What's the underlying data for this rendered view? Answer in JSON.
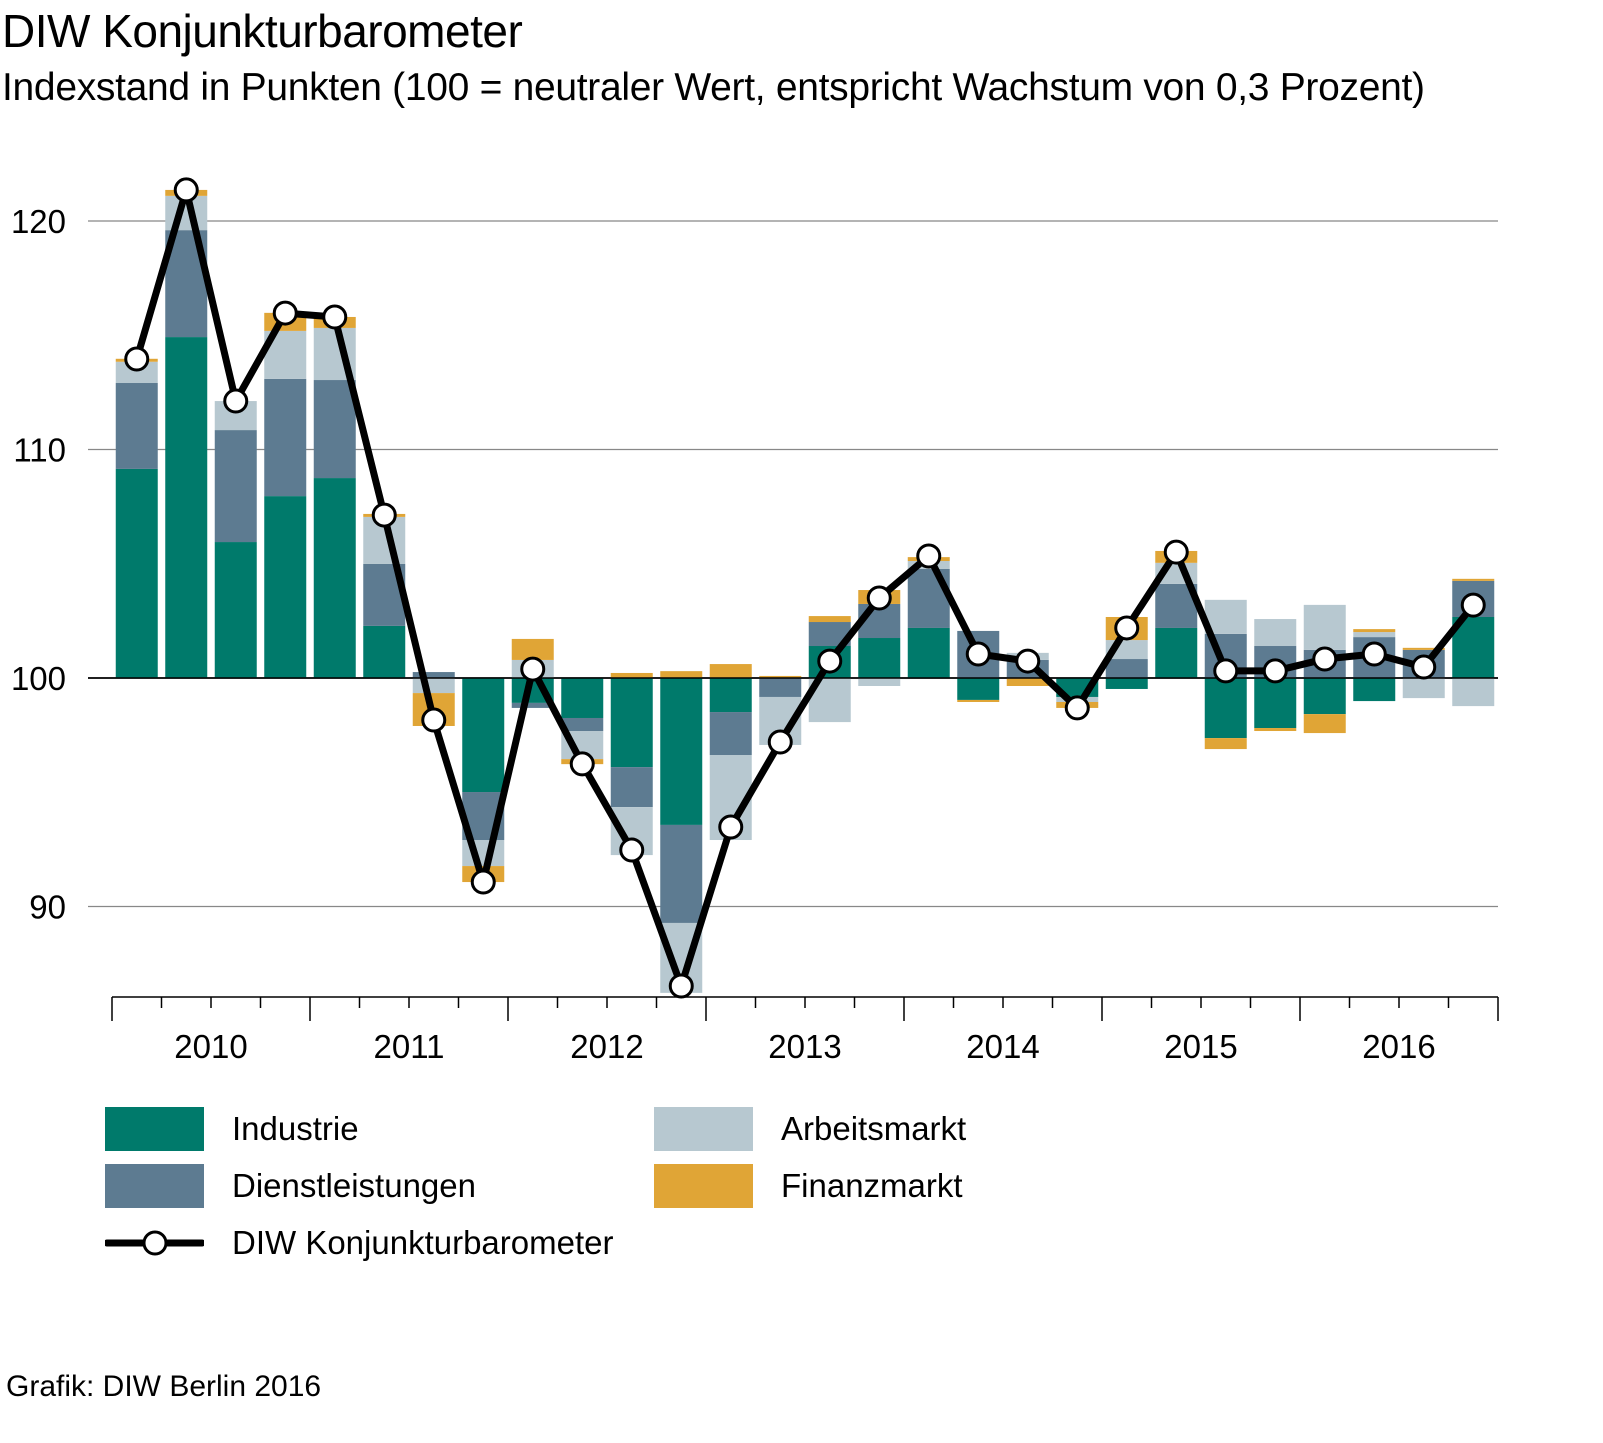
{
  "title": "DIW Konjunkturbarometer",
  "subtitle": "Indexstand in Punkten (100 = neutraler Wert, entspricht Wachstum von 0,3 Prozent)",
  "source": "Grafik: DIW Berlin 2016",
  "colors": {
    "Industrie": "#007a6b",
    "Dienstleistungen": "#5d7b91",
    "Arbeitsmarkt": "#b7c8d0",
    "Finanzmarkt": "#e0a536",
    "line": "#000000"
  },
  "chart_data": {
    "type": "bar",
    "title": "DIW Konjunkturbarometer",
    "ylabel": "Indexstand in Punkten",
    "ylim": [
      86,
      122
    ],
    "baseline": 100,
    "yticks": [
      90,
      100,
      110,
      120
    ],
    "ytick_labels": [
      "90",
      "100",
      "110",
      "120"
    ],
    "grid": true,
    "years": [
      "2010",
      "2011",
      "2012",
      "2013",
      "2014",
      "2015",
      "2016"
    ],
    "categories": [
      "2010Q1",
      "2010Q2",
      "2010Q3",
      "2010Q4",
      "2011Q1",
      "2011Q2",
      "2011Q3",
      "2011Q4",
      "2012Q1",
      "2012Q2",
      "2012Q3",
      "2012Q4",
      "2013Q1",
      "2013Q2",
      "2013Q3",
      "2013Q4",
      "2014Q1",
      "2014Q2",
      "2014Q3",
      "2014Q4",
      "2015Q1",
      "2015Q2",
      "2015Q3",
      "2015Q4",
      "2016Q1",
      "2016Q2",
      "2016Q3",
      "2016Q4"
    ],
    "legend_placement": "bottom",
    "series": [
      {
        "name": "Industrie",
        "type": "stacked-bar",
        "values": [
          9.15,
          14.92,
          5.95,
          7.96,
          8.75,
          2.28,
          0,
          -4.99,
          -1.09,
          -1.75,
          -3.9,
          -6.43,
          -1.49,
          0,
          1.4,
          1.75,
          2.19,
          -0.96,
          0,
          -0.83,
          -0.48,
          2.19,
          -2.63,
          -2.19,
          -1.58,
          -1.01,
          0,
          2.67
        ]
      },
      {
        "name": "Dienstleistungen",
        "type": "stacked-bar",
        "values": [
          3.76,
          4.68,
          4.9,
          5.13,
          4.29,
          2.71,
          0.26,
          -2.1,
          -0.22,
          -0.57,
          -1.75,
          -4.29,
          -1.88,
          -0.83,
          1.05,
          1.49,
          2.58,
          2.06,
          0.79,
          0,
          0.83,
          1.93,
          1.93,
          1.4,
          1.23,
          1.79,
          1.23,
          1.58
        ]
      },
      {
        "name": "Arbeitsmarkt",
        "type": "stacked-bar",
        "values": [
          0.93,
          1.5,
          1.27,
          2.1,
          2.28,
          2.06,
          -0.66,
          -1.14,
          0.79,
          -1.23,
          -2.1,
          -3.06,
          -3.72,
          -2.1,
          -1.93,
          -0.35,
          0.35,
          0,
          0.31,
          -0.22,
          0.83,
          0.92,
          1.49,
          1.18,
          1.97,
          0.22,
          -0.88,
          -1.23
        ]
      },
      {
        "name": "Finanzmarkt",
        "type": "stacked-bar",
        "values": [
          0.13,
          0.26,
          0,
          0.79,
          0.48,
          0.13,
          -1.44,
          -0.7,
          0.92,
          -0.22,
          0.22,
          0.3,
          0.61,
          0.09,
          0.26,
          0.61,
          0.17,
          -0.09,
          -0.35,
          -0.26,
          1.01,
          0.52,
          -0.48,
          -0.13,
          -0.83,
          0.13,
          0.09,
          0.09
        ]
      },
      {
        "name": "DIW Konjunkturbarometer",
        "type": "line",
        "values": [
          113.96,
          121.36,
          112.12,
          115.97,
          115.8,
          107.13,
          98.16,
          91.07,
          100.39,
          96.24,
          92.47,
          86.52,
          93.48,
          97.2,
          100.74,
          103.5,
          105.34,
          101.05,
          100.74,
          98.69,
          102.19,
          105.51,
          100.31,
          100.31,
          100.83,
          101.05,
          100.48,
          103.19
        ]
      }
    ]
  }
}
